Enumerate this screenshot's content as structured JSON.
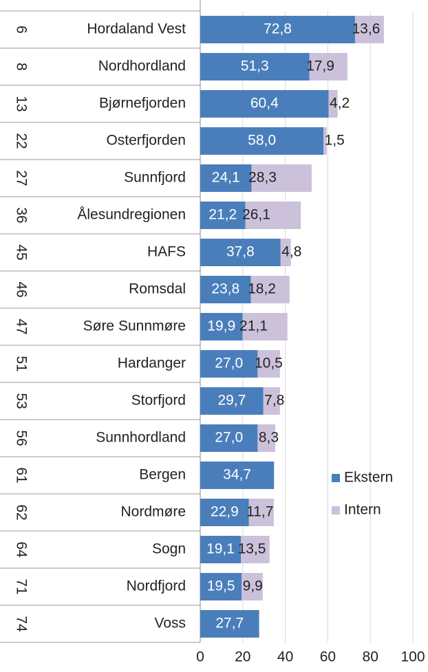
{
  "chart_data": {
    "type": "bar",
    "orientation": "horizontal",
    "stacked": true,
    "ranks": [
      6,
      8,
      13,
      22,
      27,
      36,
      45,
      46,
      47,
      51,
      53,
      56,
      61,
      62,
      64,
      71,
      74
    ],
    "categories": [
      "Hordaland Vest",
      "Nordhordland",
      "Bjørnefjorden",
      "Osterfjorden",
      "Sunnfjord",
      "Ålesundregionen",
      "HAFS",
      "Romsdal",
      "Søre Sunnmøre",
      "Hardanger",
      "Storfjord",
      "Sunnhordland",
      "Bergen",
      "Nordmøre",
      "Sogn",
      "Nordfjord",
      "Voss"
    ],
    "series": [
      {
        "name": "Ekstern",
        "color": "#4a7ebb",
        "values": [
          72.8,
          51.3,
          60.4,
          58.0,
          24.1,
          21.2,
          37.8,
          23.8,
          19.9,
          27.0,
          29.7,
          27.0,
          34.7,
          22.9,
          19.1,
          19.5,
          27.7
        ],
        "value_labels": [
          "72,8",
          "51,3",
          "60,4",
          "58,0",
          "24,1",
          "21,2",
          "37,8",
          "23,8",
          "19,9",
          "27,0",
          "29,7",
          "27,0",
          "34,7",
          "22,9",
          "19,1",
          "19,5",
          "27,7"
        ]
      },
      {
        "name": "Intern",
        "color": "#ccc1da",
        "values": [
          13.6,
          17.9,
          4.2,
          1.5,
          28.3,
          26.1,
          4.8,
          18.2,
          21.1,
          10.5,
          7.8,
          8.3,
          null,
          11.7,
          13.5,
          9.9,
          null
        ],
        "value_labels": [
          "13,6",
          "17,9",
          "4,2",
          "1,5",
          "28,3",
          "26,1",
          "4,8",
          "18,2",
          "21,1",
          "10,5",
          "7,8",
          "8,3",
          null,
          "11,7",
          "13,5",
          "9,9",
          null
        ]
      }
    ],
    "xlim": [
      0,
      100
    ],
    "xticks": [
      0,
      20,
      40,
      60,
      80,
      100
    ],
    "grid": true,
    "legend": "right"
  }
}
